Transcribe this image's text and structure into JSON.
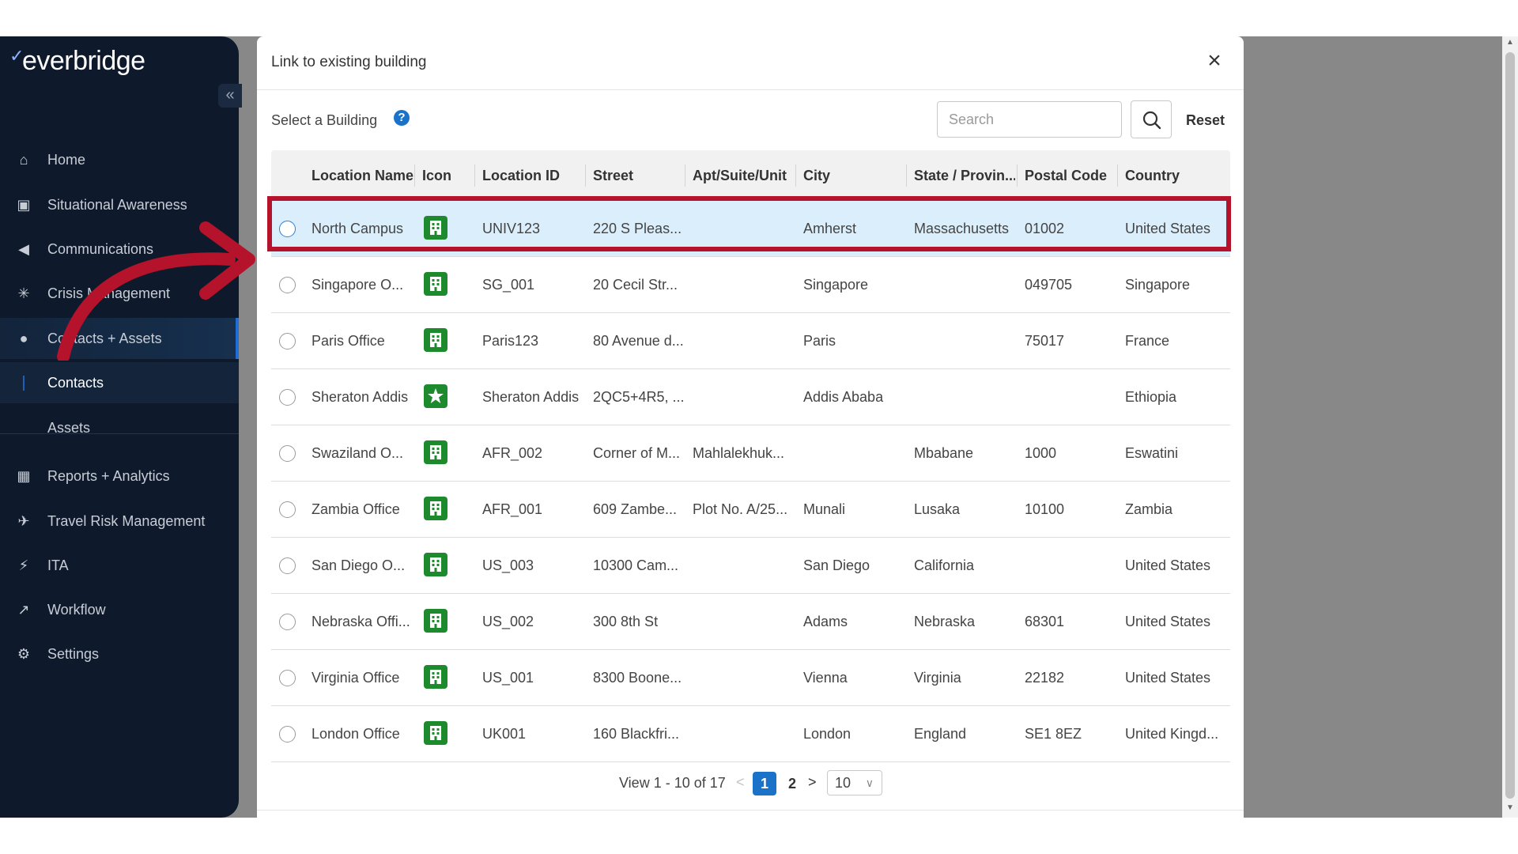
{
  "app": {
    "logo_text": "everbridge",
    "logo_mark": "✓",
    "collapse_glyph": "«"
  },
  "sidebar": {
    "items": [
      {
        "label": "Home",
        "icon": "home-icon",
        "glyph": "⌂"
      },
      {
        "label": "Situational Awareness",
        "icon": "map-icon",
        "glyph": "▣"
      },
      {
        "label": "Communications",
        "icon": "megaphone-icon",
        "glyph": "◀"
      },
      {
        "label": "Crisis Management",
        "icon": "crisis-icon",
        "glyph": "✳"
      },
      {
        "label": "Contacts + Assets",
        "icon": "location-pin-icon",
        "glyph": "●"
      },
      {
        "label": "Contacts",
        "icon": "",
        "glyph": "|"
      },
      {
        "label": "Assets",
        "icon": "",
        "glyph": ""
      },
      {
        "label": "Reports + Analytics",
        "icon": "reports-icon",
        "glyph": "▦"
      },
      {
        "label": "Travel Risk Management",
        "icon": "airplane-icon",
        "glyph": "✈"
      },
      {
        "label": "ITA",
        "icon": "ita-icon",
        "glyph": "⚡"
      },
      {
        "label": "Workflow",
        "icon": "chart-icon",
        "glyph": "↗"
      },
      {
        "label": "Settings",
        "icon": "gear-icon",
        "glyph": "⚙"
      }
    ]
  },
  "modal": {
    "title": "Link to existing building",
    "close_glyph": "×",
    "select_label": "Select a Building",
    "help_glyph": "?",
    "search_placeholder": "Search",
    "reset_label": "Reset"
  },
  "table": {
    "columns": [
      "Location Name",
      "Icon",
      "Location ID",
      "Street",
      "Apt/Suite/Unit",
      "City",
      "State / Provin...",
      "Postal Code",
      "Country"
    ],
    "rows": [
      {
        "name": "North Campus",
        "icon": "building",
        "id": "UNIV123",
        "street": "220 S Pleas...",
        "apt": "",
        "city": "Amherst",
        "state": "Massachusetts",
        "postal": "01002",
        "country": "United States",
        "selected": true
      },
      {
        "name": "Singapore O...",
        "icon": "building",
        "id": "SG_001",
        "street": "20 Cecil Str...",
        "apt": "",
        "city": "Singapore",
        "state": "",
        "postal": "049705",
        "country": "Singapore"
      },
      {
        "name": "Paris Office",
        "icon": "building",
        "id": "Paris123",
        "street": "80 Avenue d...",
        "apt": "",
        "city": "Paris",
        "state": "",
        "postal": "75017",
        "country": "France"
      },
      {
        "name": "Sheraton Addis",
        "icon": "star",
        "id": "Sheraton Addis",
        "street": "2QC5+4R5, ...",
        "apt": "",
        "city": "Addis Ababa",
        "state": "",
        "postal": "",
        "country": "Ethiopia"
      },
      {
        "name": "Swaziland O...",
        "icon": "building",
        "id": "AFR_002",
        "street": "Corner of M...",
        "apt": "Mahlalekhuk...",
        "city": "",
        "state": "Mbabane",
        "postal": "1000",
        "country": "Eswatini"
      },
      {
        "name": "Zambia Office",
        "icon": "building",
        "id": "AFR_001",
        "street": "609 Zambe...",
        "apt": "Plot No. A/25...",
        "city": "Munali",
        "state": "Lusaka",
        "postal": "10100",
        "country": "Zambia"
      },
      {
        "name": "San Diego O...",
        "icon": "building",
        "id": "US_003",
        "street": "10300 Cam...",
        "apt": "",
        "city": "San Diego",
        "state": "California",
        "postal": "",
        "country": "United States"
      },
      {
        "name": "Nebraska Offi...",
        "icon": "building",
        "id": "US_002",
        "street": "300 8th St",
        "apt": "",
        "city": "Adams",
        "state": "Nebraska",
        "postal": "68301",
        "country": "United States"
      },
      {
        "name": "Virginia Office",
        "icon": "building",
        "id": "US_001",
        "street": "8300 Boone...",
        "apt": "",
        "city": "Vienna",
        "state": "Virginia",
        "postal": "22182",
        "country": "United States"
      },
      {
        "name": "London Office",
        "icon": "building",
        "id": "UK001",
        "street": "160 Blackfri...",
        "apt": "",
        "city": "London",
        "state": "England",
        "postal": "SE1 8EZ",
        "country": "United Kingd..."
      }
    ]
  },
  "pagination": {
    "view_text": "View 1 - 10 of 17",
    "prev_glyph": "<",
    "pages": [
      "1",
      "2"
    ],
    "current_page": "1",
    "next_glyph": ">",
    "per_page": "10",
    "per_page_chevron": "∨"
  },
  "colors": {
    "sidebar_bg": "#0e1a2b",
    "accent_blue": "#1a73c9",
    "selected_row": "#dbeefb",
    "highlight_red": "#b5122b",
    "building_icon_green": "#1e8a2e"
  }
}
